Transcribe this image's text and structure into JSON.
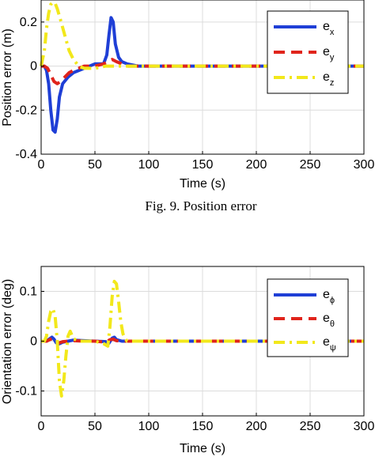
{
  "caption_top": "Fig.  9. Position error",
  "chart_data": [
    {
      "type": "line",
      "xlabel": "Time (s)",
      "ylabel": "Position error (m)",
      "xlim": [
        0,
        300
      ],
      "ylim": [
        -0.4,
        0.3
      ],
      "x_ticks": [
        0,
        50,
        100,
        150,
        200,
        250,
        300
      ],
      "x_tick_labels": [
        "0",
        "50",
        "100",
        "150",
        "200",
        "250",
        "300"
      ],
      "y_ticks": [
        0.2,
        0,
        -0.2,
        -0.4
      ],
      "y_tick_labels": [
        "0.2",
        "0",
        "-0.2",
        "-0.4"
      ],
      "grid": true,
      "legend_position": "top-right",
      "series": [
        {
          "name": "e",
          "subscript": "x",
          "color": "#1f3fd6",
          "style": "solid",
          "x": [
            0,
            3,
            5,
            7,
            9,
            11,
            13,
            15,
            17,
            20,
            25,
            30,
            40,
            50,
            58,
            61,
            63,
            65,
            67,
            69,
            72,
            75,
            80,
            90,
            100,
            150,
            200,
            250,
            300
          ],
          "y": [
            0,
            0,
            -0.02,
            -0.08,
            -0.2,
            -0.29,
            -0.3,
            -0.24,
            -0.14,
            -0.08,
            -0.05,
            -0.03,
            -0.01,
            0.01,
            0.01,
            0.05,
            0.14,
            0.22,
            0.2,
            0.1,
            0.04,
            0.02,
            0.01,
            0,
            0,
            0,
            0,
            0,
            0
          ]
        },
        {
          "name": "e",
          "subscript": "y",
          "color": "#e0241b",
          "style": "dashed",
          "x": [
            0,
            3,
            6,
            9,
            12,
            15,
            18,
            22,
            26,
            30,
            35,
            40,
            50,
            58,
            62,
            66,
            70,
            75,
            80,
            90,
            100,
            150,
            200,
            250,
            300
          ],
          "y": [
            0,
            0,
            -0.01,
            -0.04,
            -0.07,
            -0.08,
            -0.07,
            -0.05,
            -0.03,
            -0.02,
            -0.01,
            0,
            0,
            0.01,
            0.02,
            0.03,
            0.02,
            0.01,
            0,
            0,
            0,
            0,
            0,
            0,
            0
          ]
        },
        {
          "name": "e",
          "subscript": "z",
          "color": "#f2e81b",
          "style": "dashdot",
          "x": [
            0,
            3,
            5,
            7,
            9,
            11,
            13,
            15,
            18,
            22,
            26,
            30,
            35,
            40,
            50,
            60,
            70,
            80,
            100,
            150,
            200,
            250,
            300
          ],
          "y": [
            0,
            0.07,
            0.17,
            0.24,
            0.28,
            0.29,
            0.285,
            0.26,
            0.21,
            0.14,
            0.07,
            0.03,
            0.0,
            -0.01,
            -0.01,
            0,
            0,
            0,
            0,
            0,
            0,
            0,
            0
          ]
        }
      ]
    },
    {
      "type": "line",
      "xlabel": "Time (s)",
      "ylabel": "Orientation error (deg)",
      "xlim": [
        0,
        300
      ],
      "ylim": [
        -0.15,
        0.15
      ],
      "x_ticks": [
        0,
        50,
        100,
        150,
        200,
        250,
        300
      ],
      "x_tick_labels": [
        "0",
        "50",
        "100",
        "150",
        "200",
        "250",
        "300"
      ],
      "y_ticks": [
        0.1,
        0,
        -0.1
      ],
      "y_tick_labels": [
        "0.1",
        "0",
        "-0.1"
      ],
      "grid": true,
      "legend_position": "top-right",
      "series": [
        {
          "name": "e",
          "subscript": "ϕ",
          "color": "#1f3fd6",
          "style": "solid",
          "x": [
            0,
            5,
            8,
            10,
            12,
            14,
            16,
            20,
            25,
            30,
            40,
            50,
            60,
            63,
            66,
            68,
            70,
            75,
            80,
            100,
            150,
            200,
            250,
            300
          ],
          "y": [
            0,
            0,
            0.005,
            0.008,
            0.004,
            -0.003,
            -0.006,
            -0.002,
            0,
            0.002,
            0.001,
            0,
            -0.001,
            -0.004,
            0.006,
            0.008,
            0.003,
            0,
            0,
            0,
            0,
            0,
            0,
            0
          ]
        },
        {
          "name": "e",
          "subscript": "θ",
          "color": "#e0241b",
          "style": "dashed",
          "x": [
            0,
            5,
            8,
            10,
            13,
            16,
            20,
            25,
            30,
            40,
            50,
            60,
            64,
            67,
            70,
            75,
            80,
            100,
            150,
            200,
            250,
            300
          ],
          "y": [
            0,
            0,
            0.003,
            0.005,
            0.002,
            -0.004,
            -0.001,
            0,
            0.001,
            0,
            0,
            -0.002,
            0.003,
            0.004,
            0.001,
            0,
            0,
            0,
            0,
            0,
            0,
            0
          ]
        },
        {
          "name": "e",
          "subscript": "ψ",
          "color": "#f2e81b",
          "style": "dashdot",
          "x": [
            0,
            3,
            5,
            7,
            9,
            11,
            13,
            15,
            17,
            19,
            21,
            23,
            25,
            27,
            30,
            35,
            40,
            50,
            58,
            62,
            64,
            66,
            68,
            70,
            72,
            74,
            76,
            78,
            80,
            85,
            90,
            100,
            150,
            200,
            250,
            300
          ],
          "y": [
            0,
            0.0,
            0.01,
            0.04,
            0.06,
            0.065,
            0.05,
            0.0,
            -0.08,
            -0.11,
            -0.08,
            -0.03,
            0.01,
            0.02,
            0.005,
            0,
            0,
            0,
            -0.005,
            -0.01,
            0.03,
            0.09,
            0.12,
            0.115,
            0.08,
            0.04,
            0.015,
            0.005,
            0,
            0,
            0,
            0,
            0,
            0,
            0,
            0
          ]
        }
      ]
    }
  ]
}
